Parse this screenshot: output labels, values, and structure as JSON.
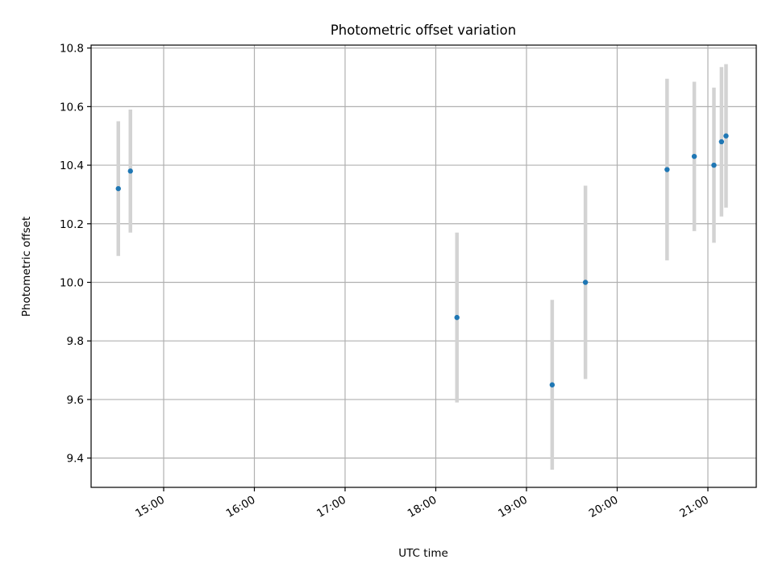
{
  "chart_data": {
    "type": "scatter",
    "title": "Photometric offset variation",
    "xlabel": "UTC time",
    "ylabel": "Photometric offset",
    "x_axis_type": "time",
    "xlim": [
      "14:12",
      "21:32"
    ],
    "ylim": [
      9.3,
      10.81
    ],
    "x_ticks": [
      "15:00",
      "16:00",
      "17:00",
      "18:00",
      "19:00",
      "20:00",
      "21:00"
    ],
    "y_ticks": [
      9.4,
      9.6,
      9.8,
      10.0,
      10.2,
      10.4,
      10.6,
      10.8
    ],
    "y_tick_labels": [
      "9.4",
      "9.6",
      "9.8",
      "10.0",
      "10.2",
      "10.4",
      "10.6",
      "10.8"
    ],
    "grid": true,
    "points": [
      {
        "time": "14:30",
        "y": 10.32,
        "yerr": 0.23
      },
      {
        "time": "14:38",
        "y": 10.38,
        "yerr": 0.21
      },
      {
        "time": "18:14",
        "y": 9.88,
        "yerr": 0.29
      },
      {
        "time": "19:17",
        "y": 9.65,
        "yerr": 0.29
      },
      {
        "time": "19:39",
        "y": 10.0,
        "yerr": 0.33
      },
      {
        "time": "20:33",
        "y": 10.385,
        "yerr": 0.31
      },
      {
        "time": "20:51",
        "y": 10.43,
        "yerr": 0.255
      },
      {
        "time": "21:04",
        "y": 10.4,
        "yerr": 0.265
      },
      {
        "time": "21:09",
        "y": 10.48,
        "yerr": 0.255
      },
      {
        "time": "21:12",
        "y": 10.5,
        "yerr": 0.245
      }
    ],
    "colors": {
      "point": "#1f77b4",
      "errorbar": "#d3d3d3",
      "grid": "#b0b0b0",
      "axis": "#000000"
    }
  }
}
